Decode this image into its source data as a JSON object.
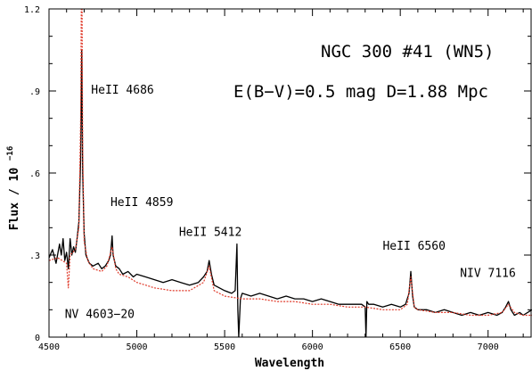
{
  "chart_data": {
    "type": "line",
    "title": "NGC 300 #41 (WN5)",
    "subtitle": "E(B−V)=0.5 mag D=1.88 Mpc",
    "xlabel": "Wavelength",
    "ylabel_text": "Flux / 10",
    "ylabel_exponent": "−16",
    "xlim": [
      4500,
      7250
    ],
    "ylim": [
      0,
      1.2
    ],
    "x_ticks": [
      4500,
      5000,
      5500,
      6000,
      6500,
      7000
    ],
    "y_ticks": [
      0,
      0.3,
      0.6,
      0.9,
      1.2
    ],
    "y_tick_labels": [
      "0",
      ".3",
      ".6",
      ".9",
      "1.2"
    ],
    "grid": false,
    "series": [
      {
        "style": "solid",
        "color": "#000000",
        "x": [
          4500,
          4520,
          4540,
          4560,
          4570,
          4580,
          4590,
          4600,
          4610,
          4620,
          4630,
          4640,
          4650,
          4660,
          4670,
          4680,
          4686,
          4692,
          4700,
          4710,
          4730,
          4750,
          4780,
          4800,
          4820,
          4840,
          4850,
          4859,
          4865,
          4880,
          4900,
          4920,
          4950,
          4980,
          5000,
          5050,
          5100,
          5150,
          5200,
          5250,
          5300,
          5350,
          5380,
          5400,
          5412,
          5425,
          5440,
          5470,
          5500,
          5540,
          5560,
          5570,
          5575,
          5580,
          5590,
          5600,
          5650,
          5700,
          5750,
          5800,
          5850,
          5900,
          5950,
          6000,
          6050,
          6100,
          6150,
          6200,
          6250,
          6280,
          6300,
          6305,
          6310,
          6320,
          6350,
          6400,
          6450,
          6500,
          6530,
          6550,
          6560,
          6570,
          6580,
          6600,
          6650,
          6700,
          6750,
          6800,
          6850,
          6900,
          6950,
          7000,
          7050,
          7080,
          7100,
          7116,
          7130,
          7150,
          7180,
          7200,
          7250
        ],
        "y": [
          0.29,
          0.32,
          0.27,
          0.34,
          0.3,
          0.36,
          0.28,
          0.31,
          0.25,
          0.36,
          0.3,
          0.33,
          0.31,
          0.36,
          0.42,
          0.65,
          1.05,
          0.6,
          0.38,
          0.3,
          0.27,
          0.26,
          0.27,
          0.25,
          0.26,
          0.28,
          0.3,
          0.37,
          0.3,
          0.26,
          0.25,
          0.23,
          0.24,
          0.22,
          0.23,
          0.22,
          0.21,
          0.2,
          0.21,
          0.2,
          0.19,
          0.2,
          0.22,
          0.24,
          0.28,
          0.23,
          0.19,
          0.18,
          0.17,
          0.16,
          0.17,
          0.34,
          0.1,
          0.0,
          0.14,
          0.16,
          0.15,
          0.16,
          0.15,
          0.14,
          0.15,
          0.14,
          0.14,
          0.13,
          0.14,
          0.13,
          0.12,
          0.12,
          0.12,
          0.12,
          0.11,
          0.0,
          0.13,
          0.12,
          0.12,
          0.11,
          0.12,
          0.11,
          0.12,
          0.16,
          0.24,
          0.15,
          0.11,
          0.1,
          0.1,
          0.09,
          0.1,
          0.09,
          0.08,
          0.09,
          0.08,
          0.09,
          0.08,
          0.09,
          0.11,
          0.13,
          0.1,
          0.08,
          0.09,
          0.08,
          0.1
        ]
      },
      {
        "style": "dotted",
        "color": "#e03a2a",
        "x": [
          4500,
          4550,
          4600,
          4610,
          4620,
          4650,
          4670,
          4680,
          4686,
          4692,
          4700,
          4720,
          4750,
          4800,
          4830,
          4859,
          4880,
          4900,
          4950,
          5000,
          5050,
          5100,
          5200,
          5300,
          5380,
          5412,
          5440,
          5500,
          5600,
          5700,
          5800,
          5900,
          6000,
          6100,
          6200,
          6300,
          6400,
          6500,
          6540,
          6560,
          6580,
          6600,
          6700,
          6800,
          6900,
          7000,
          7080,
          7116,
          7150,
          7200,
          7250
        ],
        "y": [
          0.28,
          0.29,
          0.27,
          0.18,
          0.3,
          0.32,
          0.4,
          0.8,
          1.45,
          0.7,
          0.35,
          0.28,
          0.25,
          0.24,
          0.26,
          0.33,
          0.25,
          0.23,
          0.22,
          0.2,
          0.19,
          0.18,
          0.17,
          0.17,
          0.2,
          0.26,
          0.17,
          0.15,
          0.14,
          0.14,
          0.13,
          0.13,
          0.12,
          0.12,
          0.11,
          0.11,
          0.1,
          0.1,
          0.12,
          0.22,
          0.11,
          0.1,
          0.09,
          0.09,
          0.08,
          0.08,
          0.09,
          0.12,
          0.09,
          0.08,
          0.08
        ]
      }
    ],
    "annotations": [
      {
        "text": "HeII 4686",
        "x": 4740,
        "y": 0.89
      },
      {
        "text": "HeII 4859",
        "x": 4850,
        "y": 0.48
      },
      {
        "text": "HeII 5412",
        "x": 5240,
        "y": 0.37
      },
      {
        "text": "HeII 6560",
        "x": 6400,
        "y": 0.32
      },
      {
        "text": "NIV 7116",
        "x": 6840,
        "y": 0.22
      },
      {
        "text": "NV 4603−20",
        "x": 4590,
        "y": 0.07
      }
    ]
  }
}
